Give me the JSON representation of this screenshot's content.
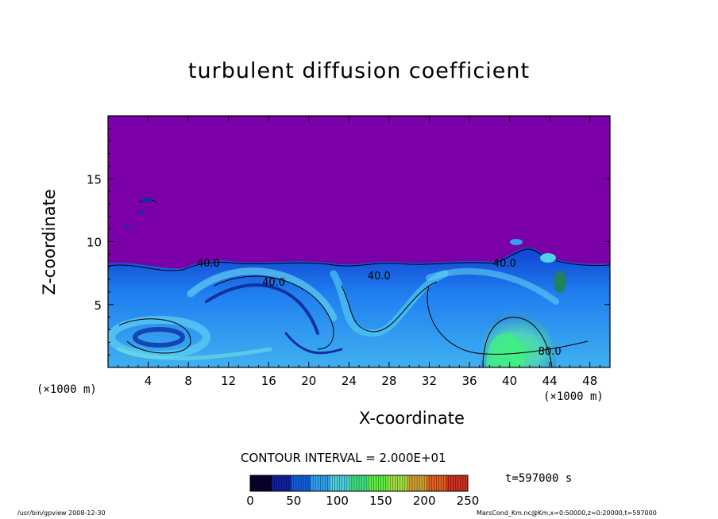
{
  "chart_data": {
    "type": "heatmap",
    "title": "turbulent diffusion coefficient",
    "xlabel": "X-coordinate",
    "ylabel": "Z-coordinate",
    "x_unit": "(×1000 m)",
    "x_ticks": [
      4,
      8,
      12,
      16,
      20,
      24,
      28,
      32,
      36,
      40,
      44,
      48
    ],
    "y_ticks": [
      5,
      10,
      15
    ],
    "xlim": [
      0,
      50
    ],
    "ylim": [
      0,
      20
    ],
    "contour_interval_label": "CONTOUR INTERVAL = 2.000E+01",
    "contour_labels": [
      {
        "text": "40.0",
        "x": 10,
        "y": 8.0
      },
      {
        "text": "40.0",
        "x": 16.5,
        "y": 6.5
      },
      {
        "text": "40.0",
        "x": 27,
        "y": 7.0
      },
      {
        "text": "40.0",
        "x": 39.5,
        "y": 8.0
      },
      {
        "text": "80.0",
        "x": 44,
        "y": 1.0
      }
    ],
    "colorbar": {
      "ticks": [
        0,
        50,
        100,
        150,
        200,
        250
      ],
      "range": [
        0,
        250
      ],
      "colors": [
        "#0b0030",
        "#1020a0",
        "#1060e0",
        "#30a0f0",
        "#50d0e0",
        "#40e080",
        "#60f040",
        "#a0e040",
        "#d0a030",
        "#e06020",
        "#d03020"
      ]
    },
    "background_color": "#7b00a8",
    "time_label": "t=597000 s"
  },
  "footer": {
    "left": "/usr/bin/gpview   2008-12-30",
    "right": "MarsCond_Km.nc@Km,x=0:50000,z=0:20000,t=597000"
  }
}
